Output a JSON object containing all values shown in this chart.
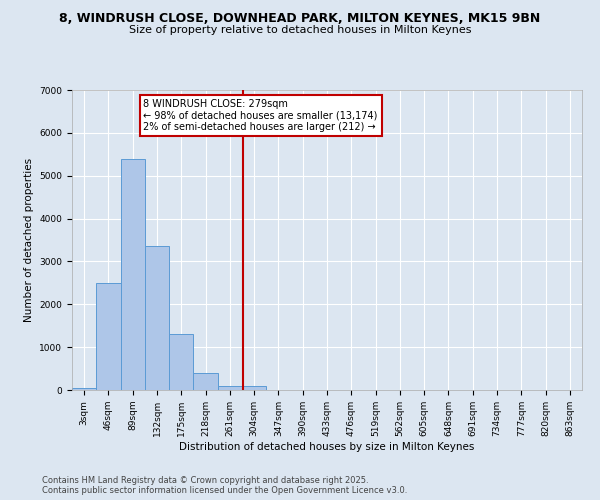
{
  "title_line1": "8, WINDRUSH CLOSE, DOWNHEAD PARK, MILTON KEYNES, MK15 9BN",
  "title_line2": "Size of property relative to detached houses in Milton Keynes",
  "xlabel": "Distribution of detached houses by size in Milton Keynes",
  "ylabel": "Number of detached properties",
  "bin_labels": [
    "3sqm",
    "46sqm",
    "89sqm",
    "132sqm",
    "175sqm",
    "218sqm",
    "261sqm",
    "304sqm",
    "347sqm",
    "390sqm",
    "433sqm",
    "476sqm",
    "519sqm",
    "562sqm",
    "605sqm",
    "648sqm",
    "691sqm",
    "734sqm",
    "777sqm",
    "820sqm",
    "863sqm"
  ],
  "bar_heights": [
    50,
    2500,
    5400,
    3350,
    1300,
    400,
    100,
    100,
    0,
    0,
    0,
    0,
    0,
    0,
    0,
    0,
    0,
    0,
    0,
    0,
    0
  ],
  "bar_color": "#aec6e8",
  "bar_edge_color": "#5b9bd5",
  "bar_width": 1.0,
  "vline_x": 6.55,
  "vline_color": "#c00000",
  "annotation_line1": "8 WINDRUSH CLOSE: 279sqm",
  "annotation_line2": "← 98% of detached houses are smaller (13,174)",
  "annotation_line3": "2% of semi-detached houses are larger (212) →",
  "annotation_box_color": "#c00000",
  "ylim": [
    0,
    7000
  ],
  "yticks": [
    0,
    1000,
    2000,
    3000,
    4000,
    5000,
    6000,
    7000
  ],
  "background_color": "#dce6f1",
  "plot_bg_color": "#dce6f1",
  "footer_line1": "Contains HM Land Registry data © Crown copyright and database right 2025.",
  "footer_line2": "Contains public sector information licensed under the Open Government Licence v3.0.",
  "title_fontsize": 9,
  "subtitle_fontsize": 8,
  "axis_label_fontsize": 7.5,
  "tick_fontsize": 6.5,
  "footer_fontsize": 6,
  "annotation_fontsize": 7
}
